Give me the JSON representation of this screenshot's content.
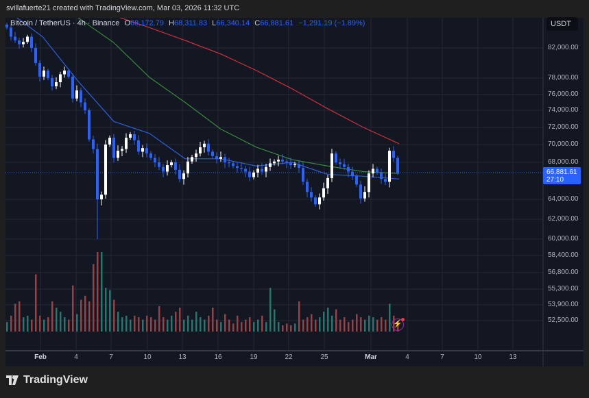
{
  "credit": "svillafuerte21 created with TradingView.com, Mar 03, 2026 11:32 UTC",
  "legend": {
    "symbol": "Bitcoin / TetherUS · 4h · Binance",
    "open_label": "O",
    "open": "68,172.79",
    "high_label": "H",
    "high": "68,311.83",
    "low_label": "L",
    "low": "66,340.14",
    "close_label": "C",
    "close": "66,881.61",
    "change": "−1,291.19 (−1.89%)"
  },
  "currency": "USDT",
  "current_price": {
    "price": "66,881.61",
    "countdown": "27:10"
  },
  "brand": "TradingView",
  "colors": {
    "up_candle": "#ffffff",
    "down_candle": "#2962ff",
    "up_volume": "#1f7a70",
    "down_volume": "#a33c3c",
    "ma_blue": "#2f5fe0",
    "ma_green": "#3b8a3b",
    "ma_red": "#d0303c",
    "background": "#131722",
    "alert_icon": "#9c27b0"
  },
  "icons": {
    "alert": "lightning-bolt-icon",
    "logo": "tradingview-logo-icon"
  },
  "chart_data": {
    "type": "candlestick",
    "title": "",
    "interval": "4h",
    "y_scale": "price",
    "grid": true,
    "ylabels": [
      "82,000.00",
      "78,000.00",
      "76,000.00",
      "74,000.00",
      "72,000.00",
      "70,000.00",
      "68,000.00",
      "64,000.00",
      "62,000.00",
      "60,000.00",
      "58,400.00",
      "56,800.00",
      "55,300.00",
      "53,900.00",
      "52,500.00"
    ],
    "xlabels": [
      "Feb",
      "4",
      "7",
      "10",
      "13",
      "16",
      "19",
      "22",
      "25",
      "Mar",
      "4",
      "7",
      "10",
      "13"
    ],
    "closes": [
      84700,
      83500,
      83000,
      82500,
      82800,
      83500,
      82000,
      80000,
      78200,
      79000,
      78000,
      77000,
      77500,
      78500,
      79000,
      78200,
      75500,
      76500,
      75000,
      74000,
      70600,
      69500,
      64000,
      64500,
      70000,
      70800,
      68500,
      69300,
      69500,
      70800,
      71200,
      70500,
      69200,
      69600,
      69000,
      68500,
      68000,
      67500,
      67000,
      67700,
      68000,
      67200,
      66200,
      66800,
      68100,
      68600,
      69000,
      69700,
      70100,
      69200,
      68700,
      68400,
      68600,
      68000,
      67900,
      67600,
      67400,
      67300,
      67000,
      66400,
      66900,
      67300,
      67000,
      67500,
      67900,
      68100,
      68300,
      68100,
      68000,
      67700,
      67800,
      67400,
      65900,
      64800,
      64200,
      63500,
      64200,
      65200,
      66300,
      69000,
      68000,
      67800,
      67500,
      67000,
      66500,
      65600,
      64100,
      64800,
      66800,
      67300,
      66900,
      66200,
      65900,
      69300,
      68500,
      66881.61
    ],
    "period_low": 60000,
    "volume_relative": [
      12,
      20,
      35,
      38,
      18,
      20,
      15,
      72,
      20,
      15,
      18,
      38,
      30,
      25,
      18,
      15,
      58,
      22,
      40,
      45,
      38,
      85,
      100,
      100,
      55,
      52,
      40,
      25,
      18,
      20,
      15,
      20,
      18,
      15,
      20,
      18,
      15,
      32,
      18,
      15,
      20,
      25,
      30,
      15,
      20,
      15,
      25,
      18,
      15,
      20,
      30,
      15,
      12,
      22,
      15,
      10,
      20,
      12,
      15,
      18,
      12,
      15,
      20,
      12,
      55,
      28,
      12,
      8,
      10,
      8,
      10,
      38,
      15,
      18,
      22,
      15,
      18,
      25,
      30,
      20,
      28,
      15,
      18,
      12,
      15,
      22,
      18,
      15,
      20,
      18,
      15,
      18,
      15,
      35,
      20,
      10
    ],
    "moving_averages": [
      {
        "color": "#2f5fe0",
        "values": [
          87000,
          83500,
          77600,
          72700,
          71300,
          68400,
          68400,
          67600,
          68000,
          66700,
          66500,
          66200
        ]
      },
      {
        "color": "#3b8a3b",
        "values": [
          92000,
          88500,
          86000,
          82700,
          78100,
          75000,
          71800,
          69700,
          68300,
          67600,
          67000,
          66800
        ]
      },
      {
        "color": "#d0303c",
        "values": [
          92000,
          90000,
          88000,
          86300,
          84700,
          83000,
          81200,
          79000,
          76700,
          74200,
          72000,
          70100
        ]
      }
    ]
  }
}
